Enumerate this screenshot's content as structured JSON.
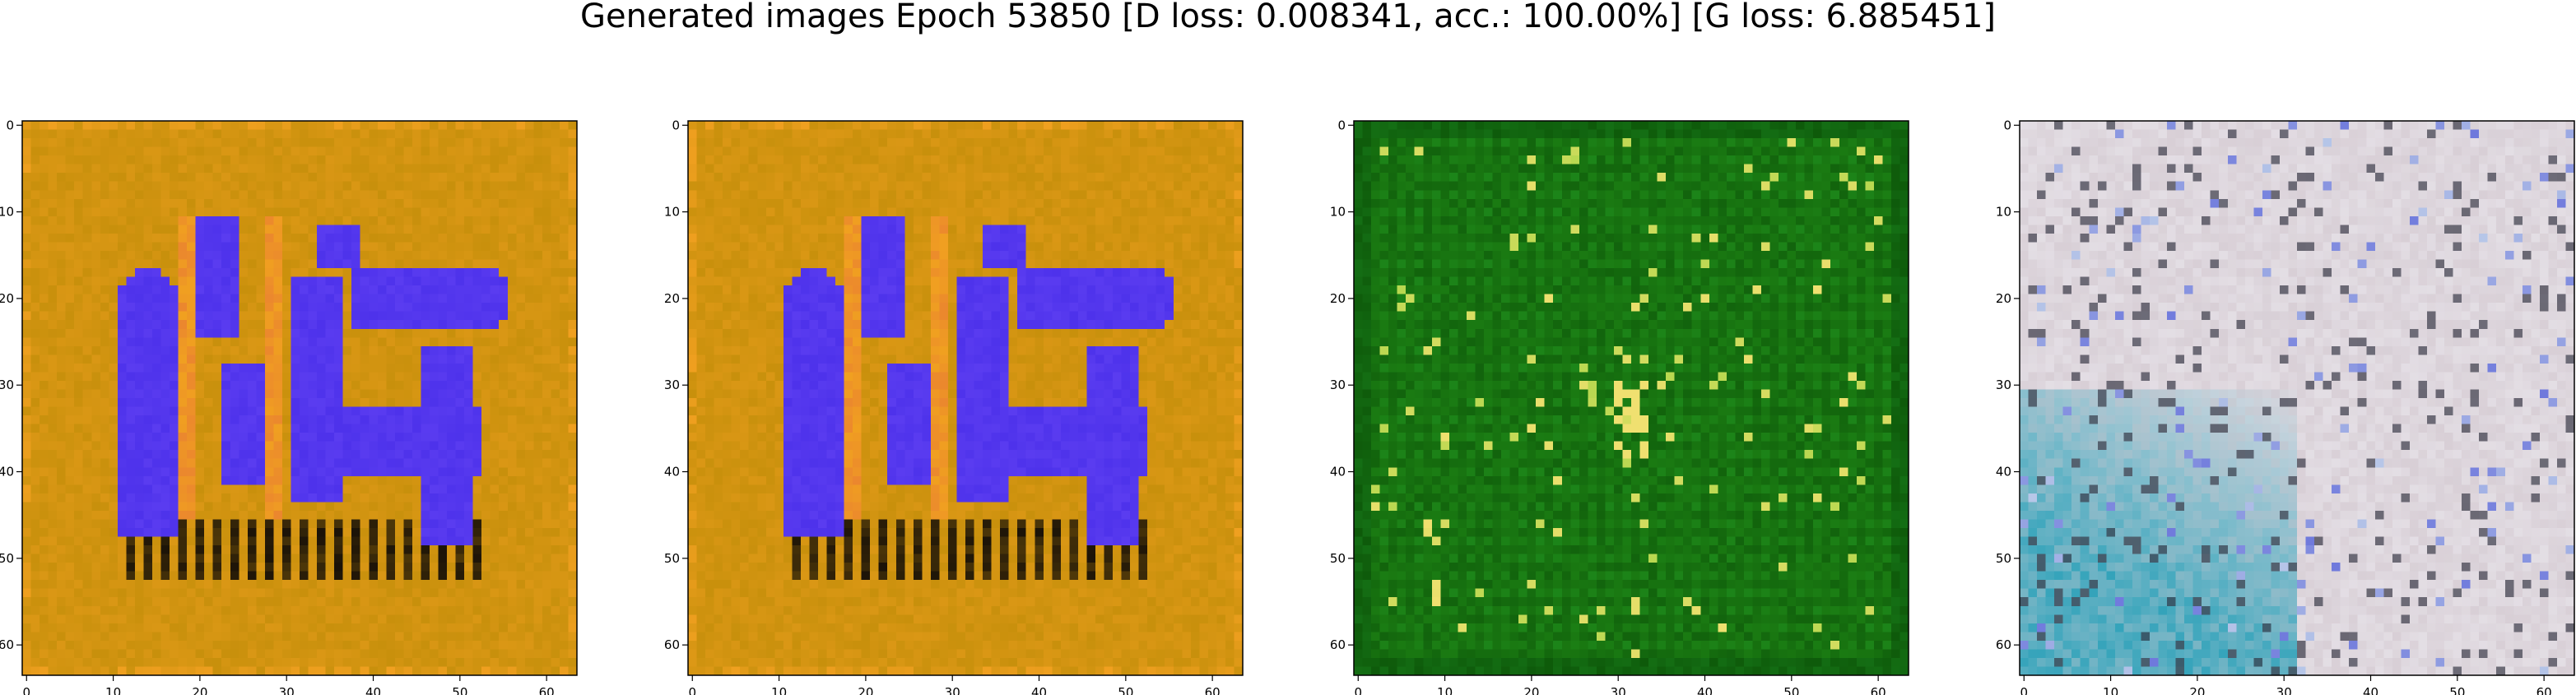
{
  "title": "Generated images Epoch 53850 [D loss: 0.008341, acc.: 100.00%] [G loss: 6.885451]",
  "chart_data": [
    {
      "type": "heatmap",
      "image": "generated-sample-1",
      "dominant_colors": [
        "#c8900c",
        "#5a3cf0",
        "#1a1208",
        "#f0a020"
      ],
      "xticks": [
        0,
        10,
        20,
        30,
        40,
        50,
        60
      ],
      "yticks": [
        0,
        10,
        20,
        30,
        40,
        50,
        60
      ],
      "xlim": [
        -0.5,
        63.5
      ],
      "ylim": [
        63.5,
        -0.5
      ],
      "pattern": "blobs"
    },
    {
      "type": "heatmap",
      "image": "generated-sample-2",
      "dominant_colors": [
        "#c8900c",
        "#5a3cf0",
        "#1a1208",
        "#f0a020"
      ],
      "xticks": [
        0,
        10,
        20,
        30,
        40,
        50,
        60
      ],
      "yticks": [
        0,
        10,
        20,
        30,
        40,
        50,
        60
      ],
      "xlim": [
        -0.5,
        63.5
      ],
      "ylim": [
        63.5,
        -0.5
      ],
      "pattern": "blobs"
    },
    {
      "type": "heatmap",
      "image": "generated-sample-3",
      "dominant_colors": [
        "#1a7a12",
        "#0e5a0a",
        "#b8d850",
        "#f0e070"
      ],
      "xticks": [
        0,
        10,
        20,
        30,
        40,
        50,
        60
      ],
      "yticks": [
        0,
        10,
        20,
        30,
        40,
        50,
        60
      ],
      "xlim": [
        -0.5,
        63.5
      ],
      "ylim": [
        63.5,
        -0.5
      ],
      "pattern": "grid"
    },
    {
      "type": "heatmap",
      "image": "generated-sample-4",
      "dominant_colors": [
        "#d8cfd6",
        "#2aa0b8",
        "#3a3a48",
        "#b8c8e8"
      ],
      "xticks": [
        0,
        10,
        20,
        30,
        40,
        50,
        60
      ],
      "yticks": [
        0,
        10,
        20,
        30,
        40,
        50,
        60
      ],
      "xlim": [
        -0.5,
        63.5
      ],
      "ylim": [
        63.5,
        -0.5
      ],
      "pattern": "pale"
    }
  ]
}
